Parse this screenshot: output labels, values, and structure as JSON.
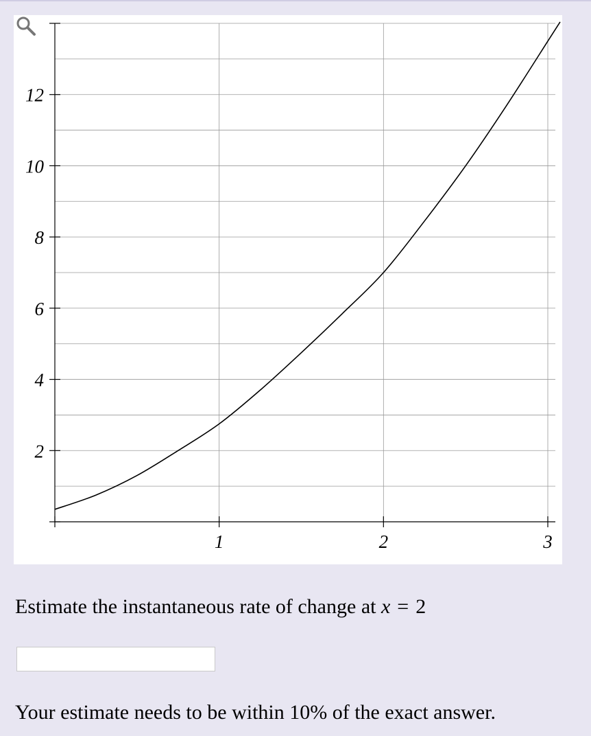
{
  "chart_data": {
    "type": "line",
    "title": "",
    "xlabel": "",
    "ylabel": "",
    "xlim": [
      0,
      3
    ],
    "ylim": [
      0,
      14
    ],
    "grid": true,
    "x_ticks": [
      1,
      2,
      3
    ],
    "x_tick_labels": [
      "1",
      "2",
      "3"
    ],
    "y_ticks": [
      2,
      4,
      6,
      8,
      10,
      12
    ],
    "y_tick_labels": [
      "2",
      "4",
      "6",
      "8",
      "10",
      "12"
    ],
    "series": [
      {
        "x": [
          0,
          0.25,
          0.5,
          0.75,
          1,
          1.25,
          1.5,
          1.75,
          2,
          2.25,
          2.5,
          2.75,
          3
        ],
        "y": [
          0.35,
          0.75,
          1.3,
          2.0,
          2.75,
          3.7,
          4.75,
          5.85,
          7.0,
          8.45,
          10.0,
          11.7,
          13.5
        ]
      }
    ]
  },
  "icons": {
    "zoom": "magnifier-icon"
  },
  "question": {
    "prefix": "Estimate the instantaneous rate of change at",
    "variable": "x",
    "operator": "=",
    "value": "2"
  },
  "answer": {
    "value": "",
    "placeholder": ""
  },
  "note": "Your estimate needs to be within 10% of the exact answer."
}
